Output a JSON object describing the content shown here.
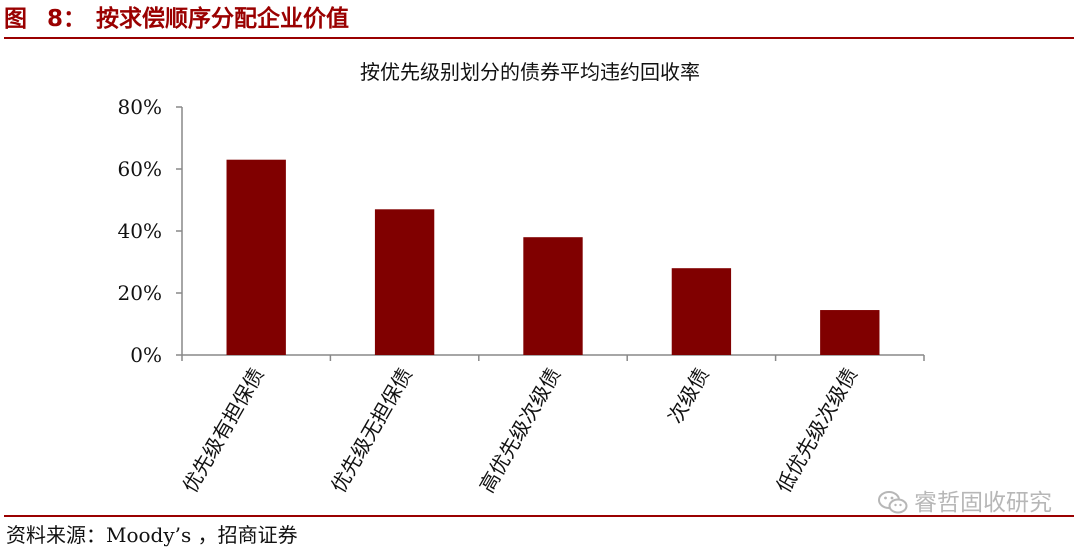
{
  "header": {
    "fig_prefix": "图",
    "fig_number": "8",
    "fig_sep": "：",
    "title": "按求偿顺序分配企业价值"
  },
  "footer": {
    "source": "资料来源：Moody’s ，招商证券"
  },
  "watermark": {
    "text": "睿哲固收研究",
    "icon": "wechat-icon"
  },
  "colors": {
    "accent": "#9a0000",
    "bar": "#800000",
    "watermark": "#b7b7b7"
  },
  "chart_data": {
    "type": "bar",
    "title": "按优先级别划分的债券平均违约回收率",
    "categories": [
      "优先级有担保债",
      "优先级无担保债",
      "高优先级次级债",
      "次级债",
      "低优先级次级债"
    ],
    "values": [
      63,
      47,
      38,
      28,
      14.5
    ],
    "ylim": [
      0,
      80
    ],
    "yticks": [
      0,
      20,
      40,
      60,
      80
    ],
    "ytick_labels": [
      "0%",
      "20%",
      "40%",
      "60%",
      "80%"
    ],
    "xlabel": "",
    "ylabel": "",
    "grid": false,
    "legend": "none"
  }
}
